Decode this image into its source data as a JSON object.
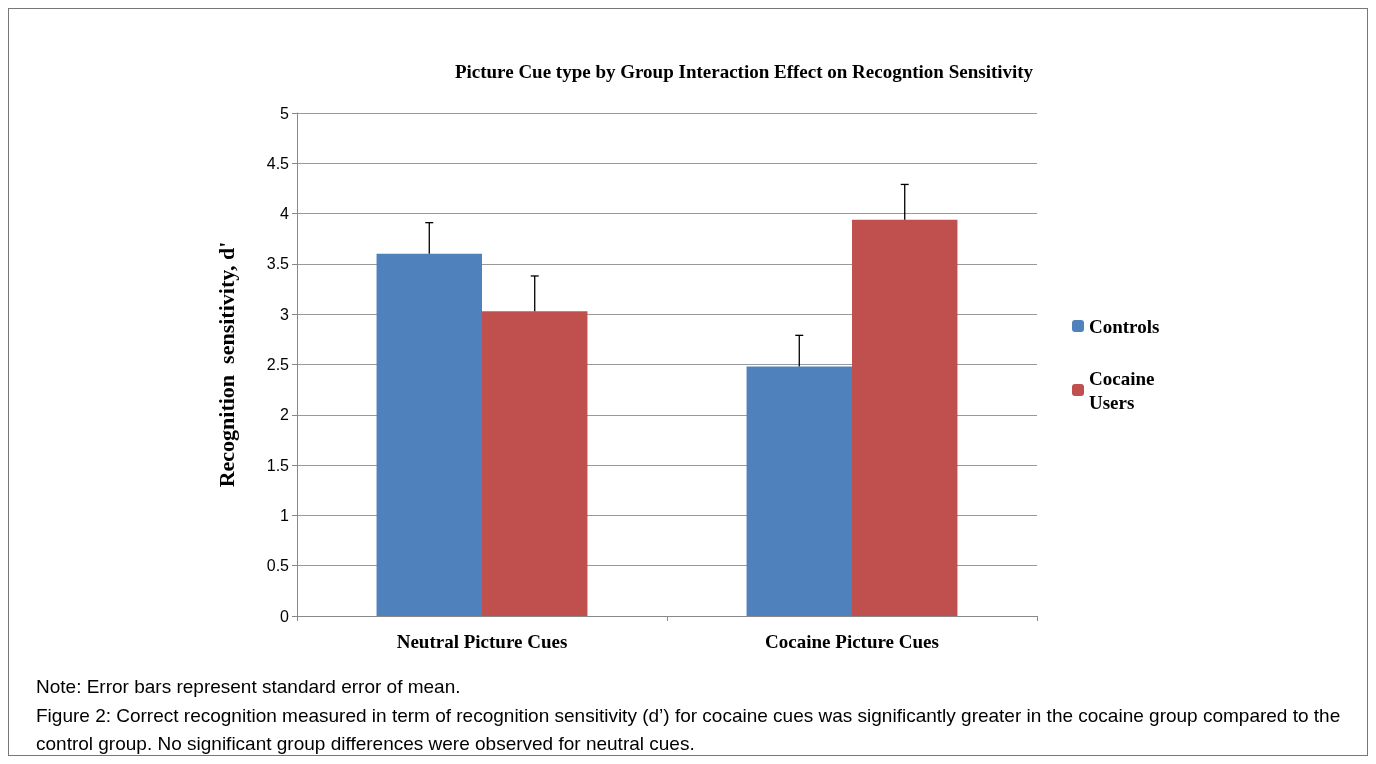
{
  "chart_data": {
    "type": "bar",
    "title": "Picture Cue type by Group Interaction Effect on Recogntion Sensitivity",
    "ylabel": "Recognition  sensitivity, d'",
    "categories": [
      "Neutral Picture Cues",
      "Cocaine Picture Cues"
    ],
    "series": [
      {
        "name": "Controls",
        "color": "#4f81bd",
        "values": [
          3.6,
          2.48
        ],
        "errors": [
          [
            3.6,
            3.91
          ],
          [
            2.48,
            2.79
          ]
        ]
      },
      {
        "name": "Cocaine Users",
        "color": "#c0504d",
        "values": [
          3.03,
          3.94
        ],
        "errors": [
          [
            3.03,
            3.38
          ],
          [
            3.94,
            4.29
          ]
        ]
      }
    ],
    "ylim": [
      0,
      5
    ],
    "yticks": [
      0,
      0.5,
      1,
      1.5,
      2,
      2.5,
      3,
      3.5,
      4,
      4.5,
      5
    ],
    "grid": "y",
    "legend": "right",
    "annotations": [
      "Note: Error bars represent standard error of mean.",
      "Figure 2: Correct recognition measured in term of recognition sensitivity (d’) for cocaine cues was significantly greater in the cocaine group compared to the control group. No significant group differences were observed for neutral cues."
    ]
  }
}
